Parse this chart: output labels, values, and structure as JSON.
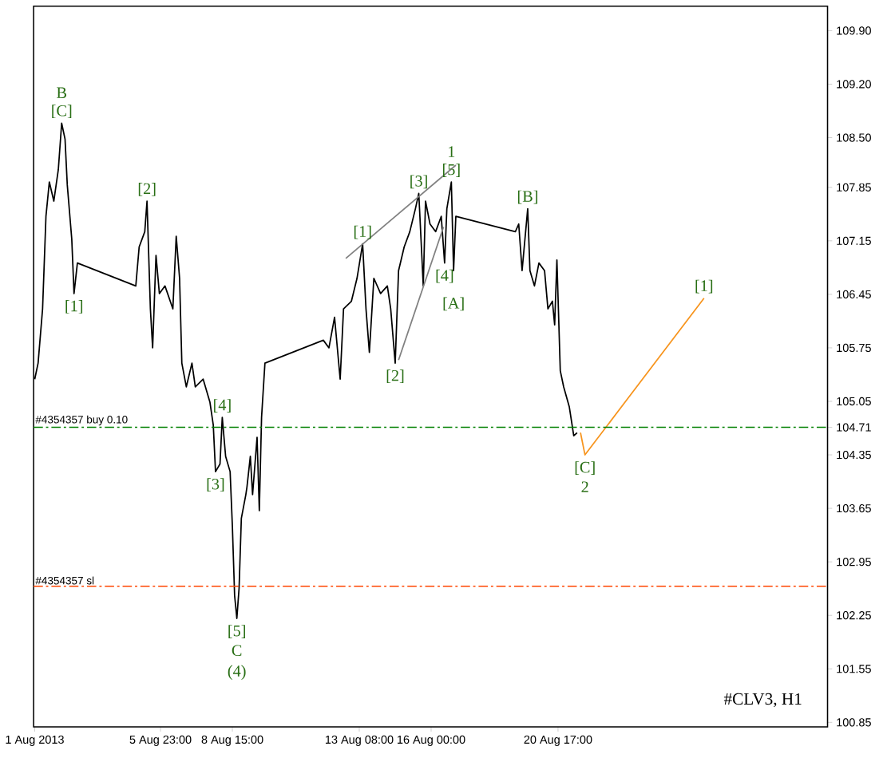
{
  "chart_data": {
    "type": "line",
    "xlim": [
      "2013-08-01T06:00",
      "2013-08-30T17:00"
    ],
    "ylim": [
      100.79,
      110.22
    ],
    "xticks": [
      {
        "value": "2013-08-01T07:00",
        "label": "1 Aug 2013"
      },
      {
        "value": "2013-08-05T23:00",
        "label": "5 Aug 23:00"
      },
      {
        "value": "2013-08-08T15:00",
        "label": "8 Aug 15:00"
      },
      {
        "value": "2013-08-13T08:00",
        "label": "13 Aug 08:00"
      },
      {
        "value": "2013-08-16T00:00",
        "label": "16 Aug 00:00"
      },
      {
        "value": "2013-08-20T17:00",
        "label": "20 Aug 17:00"
      }
    ],
    "yticks": [
      100.85,
      101.55,
      102.25,
      102.95,
      103.65,
      104.35,
      {
        "value": 104.71,
        "label": "104.71"
      },
      105.05,
      105.75,
      106.45,
      107.15,
      107.85,
      {
        "value": 108.5,
        "label": "108.50"
      },
      {
        "value": 109.2,
        "label": "109.20"
      },
      {
        "value": 109.9,
        "label": "109.90"
      }
    ],
    "series": [
      {
        "color": "#000000",
        "x": [
          "2013-08-01T07:00",
          "2013-08-01T10:00",
          "2013-08-01T14:00",
          "2013-08-01T17:00",
          "2013-08-01T20:00",
          "2013-08-02T00:00",
          "2013-08-02T04:00",
          "2013-08-02T07:00",
          "2013-08-02T10:00",
          "2013-08-02T12:00",
          "2013-08-02T16:00",
          "2013-08-02T18:00",
          "2013-08-02T21:00",
          "2013-08-05T01:00",
          "2013-08-05T04:00",
          "2013-08-05T09:00",
          "2013-08-05T11:00",
          "2013-08-05T14:00",
          "2013-08-05T16:00",
          "2013-08-05T19:00",
          "2013-08-05T22:00",
          "2013-08-06T03:00",
          "2013-08-06T10:00",
          "2013-08-06T13:00",
          "2013-08-06T16:00",
          "2013-08-06T18:00",
          "2013-08-06T22:00",
          "2013-08-07T03:00",
          "2013-08-07T06:00",
          "2013-08-07T13:00",
          "2013-08-07T19:00",
          "2013-08-07T22:00",
          "2013-08-08T00:00",
          "2013-08-08T04:00",
          "2013-08-08T06:00",
          "2013-08-08T09:00",
          "2013-08-08T13:00",
          "2013-08-08T15:00",
          "2013-08-08T17:00",
          "2013-08-08T19:00",
          "2013-08-08T21:00",
          "2013-08-08T23:00",
          "2013-08-09T03:00",
          "2013-08-09T04:00",
          "2013-08-09T07:00",
          "2013-08-09T09:00",
          "2013-08-09T13:00",
          "2013-08-09T15:00",
          "2013-08-09T17:00",
          "2013-08-09T20:00",
          "2013-08-12T00:00",
          "2013-08-12T05:00",
          "2013-08-12T10:00",
          "2013-08-12T15:00",
          "2013-08-12T18:00",
          "2013-08-13T01:00",
          "2013-08-13T06:00",
          "2013-08-13T11:00",
          "2013-08-13T14:00",
          "2013-08-13T17:00",
          "2013-08-13T21:00",
          "2013-08-14T03:00",
          "2013-08-14T09:00",
          "2013-08-14T12:00",
          "2013-08-14T16:00",
          "2013-08-14T19:00",
          "2013-08-15T00:00",
          "2013-08-15T05:00",
          "2013-08-15T10:00",
          "2013-08-15T13:00",
          "2013-08-15T15:00",
          "2013-08-15T17:00",
          "2013-08-15T19:00",
          "2013-08-15T23:00",
          "2013-08-16T04:00",
          "2013-08-16T09:00",
          "2013-08-16T12:00",
          "2013-08-16T14:00",
          "2013-08-16T18:00",
          "2013-08-16T20:00",
          "2013-08-16T22:00",
          "2013-08-19T03:00",
          "2013-08-19T06:00",
          "2013-08-19T09:00",
          "2013-08-19T14:00",
          "2013-08-19T16:00",
          "2013-08-19T20:00",
          "2013-08-20T00:00",
          "2013-08-20T05:00",
          "2013-08-20T08:00",
          "2013-08-20T12:00",
          "2013-08-20T14:00",
          "2013-08-20T16:00",
          "2013-08-20T19:00",
          "2013-08-20T22:00",
          "2013-08-21T03:00",
          "2013-08-21T07:00",
          "2013-08-21T10:00"
        ],
        "values": [
          105.34,
          105.55,
          106.26,
          107.47,
          107.92,
          107.67,
          108.08,
          108.69,
          108.48,
          107.88,
          107.17,
          106.46,
          106.86,
          106.56,
          107.07,
          107.27,
          107.67,
          106.26,
          105.75,
          106.96,
          106.46,
          106.56,
          106.26,
          107.21,
          106.66,
          105.55,
          105.24,
          105.55,
          105.24,
          105.34,
          105.04,
          104.74,
          104.13,
          104.23,
          104.84,
          104.33,
          104.13,
          103.42,
          102.51,
          102.21,
          102.61,
          103.52,
          103.83,
          103.93,
          104.33,
          103.83,
          104.58,
          103.62,
          104.84,
          105.55,
          105.85,
          105.75,
          106.15,
          105.34,
          106.26,
          106.36,
          106.66,
          107.11,
          106.26,
          105.69,
          106.66,
          106.46,
          106.56,
          106.26,
          105.55,
          106.76,
          107.07,
          107.27,
          107.57,
          107.77,
          107.17,
          106.56,
          107.67,
          107.37,
          107.27,
          107.47,
          106.86,
          107.57,
          107.92,
          106.76,
          107.47,
          107.27,
          107.37,
          106.76,
          107.57,
          106.76,
          106.56,
          106.86,
          106.76,
          106.26,
          106.36,
          106.05,
          106.9,
          105.45,
          105.24,
          104.98,
          104.6,
          104.64
        ]
      },
      {
        "color": "#f7941d",
        "x": [
          "2013-08-21T13:00",
          "2013-08-21T17:00",
          "2013-08-26T03:00"
        ],
        "values": [
          104.64,
          104.35,
          106.4
        ]
      },
      {
        "color": "#808080",
        "x": [
          "2013-08-12T20:00",
          "2013-08-16T22:00"
        ],
        "values": [
          106.92,
          108.14
        ]
      },
      {
        "color": "#808080",
        "x": [
          "2013-08-14T19:00",
          "2013-08-16T11:00"
        ],
        "values": [
          105.59,
          107.33
        ]
      }
    ],
    "ref_lines": [
      {
        "axis": "y",
        "value": 104.71,
        "label": "#4354357 buy 0.10",
        "color": "#008000",
        "line_style": "dashdot"
      },
      {
        "axis": "y",
        "value": 102.63,
        "label": "#4354357 sl",
        "color": "#ff4500",
        "line_style": "dashdot"
      }
    ],
    "annotations": [
      {
        "text": "[C]",
        "x": "2013-08-02T07:00",
        "y": 108.69
      },
      {
        "text": "B",
        "x": "2013-08-02T07:00",
        "y": 108.69
      },
      {
        "text": "[2]",
        "x": "2013-08-05T11:00",
        "y": 107.67
      },
      {
        "text": "[1]",
        "x": "2013-08-02T18:00",
        "y": 106.46
      },
      {
        "text": "[4]",
        "x": "2013-08-08T06:00",
        "y": 104.84
      },
      {
        "text": "[3]",
        "x": "2013-08-08T00:00",
        "y": 104.13
      },
      {
        "text": "[5]",
        "x": "2013-08-08T19:00",
        "y": 102.21
      },
      {
        "text": "C",
        "x": "2013-08-08T19:00",
        "y": 102.21
      },
      {
        "text": "(4)",
        "x": "2013-08-08T19:00",
        "y": 102.21
      },
      {
        "text": "[1]",
        "x": "2013-08-13T11:00",
        "y": 107.11
      },
      {
        "text": "[3]",
        "x": "2013-08-15T13:00",
        "y": 107.77
      },
      {
        "text": "[5]",
        "x": "2013-08-16T18:00",
        "y": 107.92
      },
      {
        "text": "1",
        "x": "2013-08-16T18:00",
        "y": 107.92
      },
      {
        "text": "[B]",
        "x": "2013-08-19T14:00",
        "y": 107.57
      },
      {
        "text": "[4]",
        "x": "2013-08-16T12:00",
        "y": 106.86
      },
      {
        "text": "[A]",
        "x": "2013-08-16T20:00",
        "y": 106.76
      },
      {
        "text": "[2]",
        "x": "2013-08-14T16:00",
        "y": 105.55
      },
      {
        "text": "[1]",
        "x": "2013-08-26T03:00",
        "y": 106.4
      },
      {
        "text": "[C]",
        "x": "2013-08-21T17:00",
        "y": 104.35
      },
      {
        "text": "2",
        "x": "2013-08-21T17:00",
        "y": 104.35
      },
      "#CLV3, H1"
    ],
    "grid": false,
    "marker": "none",
    "line_style": "solid"
  }
}
